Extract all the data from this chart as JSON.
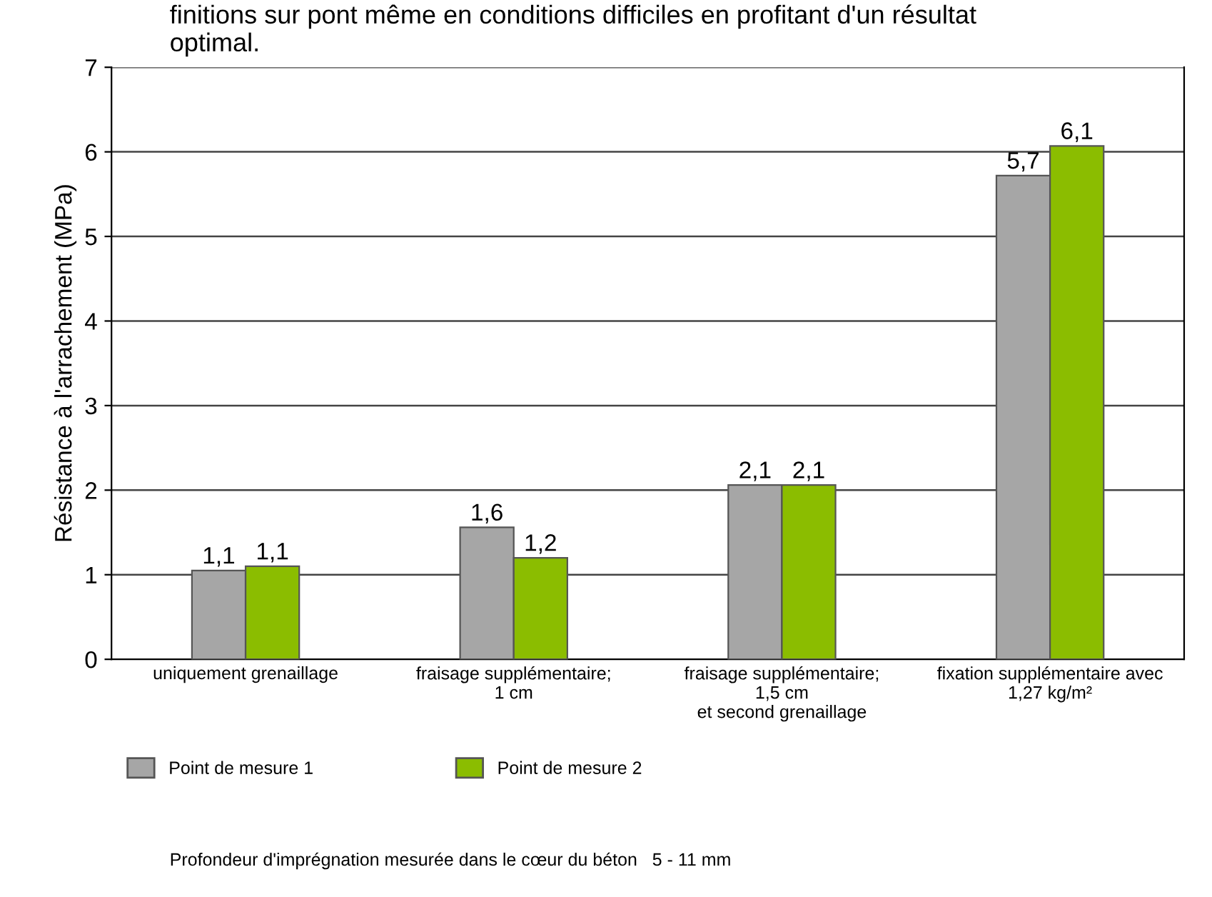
{
  "chart_data": {
    "type": "bar",
    "title": "finitions sur pont même en conditions difficiles en profitant d'un résultat\noptimal.",
    "ylabel": "Résistance à l'arrachement (MPa)",
    "categories": [
      "uniquement grenaillage",
      "fraisage supplémentaire;\n1 cm",
      "fraisage supplémentaire;\n1,5 cm\net second grenaillage",
      "fixation supplémentaire avec\n1,27 kg/m²"
    ],
    "series": [
      {
        "name": "Point de mesure 1",
        "color": "#a6a6a6",
        "values": [
          1.05,
          1.56,
          2.06,
          5.72
        ],
        "value_labels": [
          "1,1",
          "1,6",
          "2,1",
          "5,7"
        ]
      },
      {
        "name": "Point de mesure 2",
        "color": "#8bbd00",
        "values": [
          1.1,
          1.2,
          2.06,
          6.07
        ],
        "value_labels": [
          "1,1",
          "1,2",
          "2,1",
          "6,1"
        ]
      }
    ],
    "ylim": [
      0,
      7
    ],
    "yticks": [
      0,
      1,
      2,
      3,
      4,
      5,
      6,
      7
    ],
    "grid": "y",
    "legend": "bottom left",
    "annotations": [
      "Profondeur d'imprégnation mesurée dans le cœur du béton   5 - 11 mm"
    ]
  }
}
